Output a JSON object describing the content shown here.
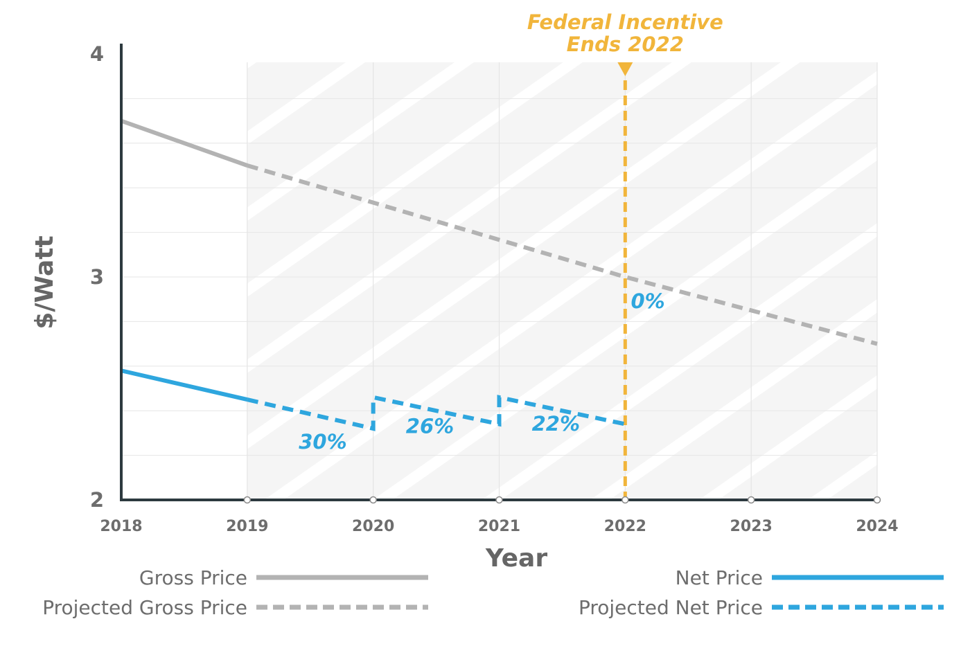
{
  "chart_data": {
    "type": "line",
    "title": "",
    "xlabel": "Year",
    "ylabel": "$/Watt",
    "xlim": [
      2018,
      2024
    ],
    "ylim": [
      2,
      4
    ],
    "x_ticks": [
      "2018",
      "2019",
      "2020",
      "2021",
      "2022",
      "2023",
      "2024"
    ],
    "y_ticks": [
      "2",
      "3",
      "4"
    ],
    "shaded_region": {
      "x_start": 2019,
      "x_end": 2024,
      "pattern": "diagonal-stripes"
    },
    "series": [
      {
        "name": "Gross Price",
        "style": "solid",
        "color": "#b3b3b3",
        "x": [
          2018,
          2019
        ],
        "y": [
          3.7,
          3.5
        ]
      },
      {
        "name": "Projected Gross Price",
        "style": "dashed",
        "color": "#b3b3b3",
        "x": [
          2019,
          2022,
          2024
        ],
        "y": [
          3.5,
          3.0,
          2.7
        ]
      },
      {
        "name": "Net Price",
        "style": "solid",
        "color": "#2ea6de",
        "x": [
          2018,
          2019
        ],
        "y": [
          2.58,
          2.45
        ]
      },
      {
        "name": "Projected Net Price",
        "style": "dashed",
        "color": "#2ea6de",
        "x": [
          2019,
          2020,
          2020,
          2021,
          2021,
          2022
        ],
        "y": [
          2.45,
          2.32,
          2.46,
          2.34,
          2.46,
          2.34
        ]
      }
    ],
    "annotations": [
      {
        "text": "30%",
        "x": 2019.6,
        "y": 2.23
      },
      {
        "text": "26%",
        "x": 2020.45,
        "y": 2.3
      },
      {
        "text": "22%",
        "x": 2021.45,
        "y": 2.31
      },
      {
        "text": "0%",
        "x": 2022.18,
        "y": 2.86
      }
    ],
    "reference_line": {
      "x": 2022,
      "color": "#f1b53b",
      "style": "dashed",
      "label_line1": "Federal Incentive",
      "label_line2": "Ends 2022"
    },
    "legend": {
      "placement": "bottom",
      "items": [
        {
          "label": "Gross Price",
          "series": "Gross Price"
        },
        {
          "label": "Net Price",
          "series": "Net Price"
        },
        {
          "label": "Projected Gross Price",
          "series": "Projected Gross Price"
        },
        {
          "label": "Projected Net Price",
          "series": "Projected Net Price"
        }
      ]
    },
    "grid": true
  }
}
